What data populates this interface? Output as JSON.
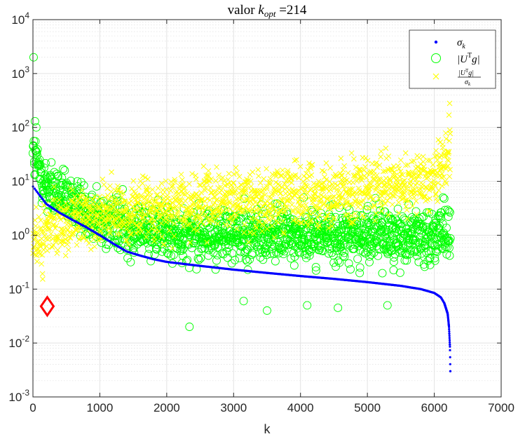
{
  "chart_data": {
    "type": "scatter",
    "title": "valor k_opt =214",
    "title_parts": {
      "prefix": "valor ",
      "var": "k",
      "sub": "opt",
      "suffix": " =214"
    },
    "xlabel": "k",
    "ylabel": "",
    "xlim": [
      0,
      7000
    ],
    "ylim": [
      0.001,
      10000
    ],
    "yscale": "log",
    "grid": true,
    "minor_grid": true,
    "legend_position": "top-right",
    "x_ticks": [
      "0",
      "1000",
      "2000",
      "3000",
      "4000",
      "5000",
      "6000",
      "7000"
    ],
    "y_ticks": [
      {
        "value": 0.001,
        "base": "10",
        "exp": "-3"
      },
      {
        "value": 0.01,
        "base": "10",
        "exp": "-2"
      },
      {
        "value": 0.1,
        "base": "10",
        "exp": "-1"
      },
      {
        "value": 1,
        "base": "10",
        "exp": "0"
      },
      {
        "value": 10,
        "base": "10",
        "exp": "1"
      },
      {
        "value": 100,
        "base": "10",
        "exp": "2"
      },
      {
        "value": 1000,
        "base": "10",
        "exp": "3"
      },
      {
        "value": 10000,
        "base": "10",
        "exp": "4"
      }
    ],
    "series": [
      {
        "name": "σ_k",
        "marker": "dot",
        "color": "#0000ff",
        "n_points": 6240,
        "x": [
          1,
          200,
          400,
          600,
          800,
          1000,
          1200,
          1400,
          1600,
          1800,
          2000,
          2500,
          3000,
          3500,
          4000,
          4500,
          5000,
          5500,
          5800,
          6000,
          6100,
          6150,
          6200,
          6220,
          6235,
          6240
        ],
        "y": [
          8,
          3.8,
          2.6,
          1.9,
          1.4,
          1.0,
          0.7,
          0.5,
          0.42,
          0.36,
          0.32,
          0.27,
          0.23,
          0.2,
          0.175,
          0.155,
          0.135,
          0.115,
          0.1,
          0.085,
          0.07,
          0.055,
          0.035,
          0.02,
          0.008,
          0.003
        ]
      },
      {
        "name": "|U^T g|",
        "marker": "circle",
        "color": "#00ff00",
        "n_points": 6240,
        "trend_x": [
          1,
          100,
          200,
          400,
          600,
          800,
          1000,
          1500,
          2000,
          3000,
          4000,
          5000,
          6000,
          6240
        ],
        "trend_y": [
          30,
          15,
          8,
          5,
          4,
          3,
          2,
          1.4,
          1.1,
          1.0,
          1.0,
          1.0,
          1.0,
          1.0
        ],
        "spread_decades": 0.45,
        "notable_points": [
          {
            "x": 10,
            "y": 2000
          },
          {
            "x": 30,
            "y": 130
          },
          {
            "x": 50,
            "y": 100
          },
          {
            "x": 2340,
            "y": 0.02
          },
          {
            "x": 3150,
            "y": 0.06
          },
          {
            "x": 3500,
            "y": 0.04
          },
          {
            "x": 4100,
            "y": 0.05
          },
          {
            "x": 4560,
            "y": 0.045
          },
          {
            "x": 5300,
            "y": 0.05
          }
        ]
      },
      {
        "name": "|U^T g| / σ_k",
        "marker": "x",
        "color": "#ffff00",
        "n_points": 6240,
        "trend_x": [
          1,
          200,
          600,
          1000,
          2000,
          3000,
          4000,
          5000,
          5500,
          5800,
          6000,
          6100,
          6200,
          6240
        ],
        "trend_y": [
          0.6,
          1.2,
          1.8,
          2.5,
          3.5,
          4.5,
          5.5,
          7,
          8,
          10,
          13,
          18,
          30,
          60
        ],
        "spread_decades": 0.5,
        "notable_points": [
          {
            "x": 6230,
            "y": 280
          },
          {
            "x": 6220,
            "y": 170
          }
        ]
      }
    ],
    "annotations": [
      {
        "type": "diamond",
        "color": "#ff0000",
        "x": 214,
        "y": 0.048
      }
    ],
    "legend": {
      "entries": [
        {
          "key": "sigma",
          "text": "σ",
          "sub": "k"
        },
        {
          "key": "utg",
          "text": "|U",
          "sup": "T",
          "text2": "g|"
        },
        {
          "key": "ratio",
          "num": "|U",
          "num_sup": "T",
          "num2": "g|",
          "den": "σ",
          "den_sub": "k"
        }
      ]
    }
  }
}
